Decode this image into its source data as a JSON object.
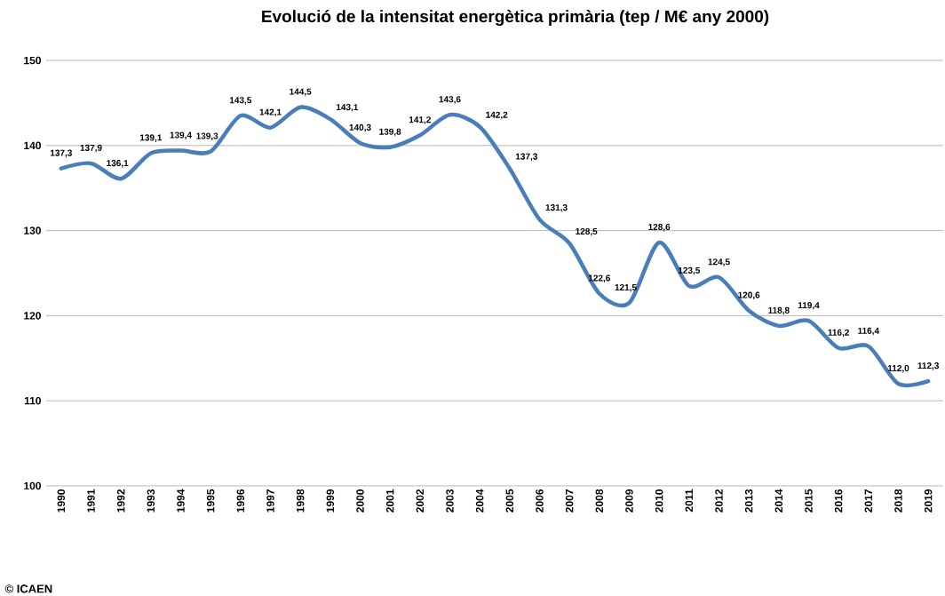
{
  "chart_data": {
    "type": "line",
    "title": "Evolució de la intensitat energètica primària (tep / M€ any 2000)",
    "categories": [
      "1990",
      "1991",
      "1992",
      "1993",
      "1994",
      "1995",
      "1996",
      "1997",
      "1998",
      "1999",
      "2000",
      "2001",
      "2002",
      "2003",
      "2004",
      "2005",
      "2006",
      "2007",
      "2008",
      "2009",
      "2010",
      "2011",
      "2012",
      "2013",
      "2014",
      "2015",
      "2016",
      "2017",
      "2018",
      "2019"
    ],
    "values": [
      137.3,
      137.9,
      136.1,
      139.1,
      139.4,
      139.3,
      143.5,
      142.1,
      144.5,
      143.1,
      140.3,
      139.8,
      141.2,
      143.6,
      142.2,
      137.3,
      131.3,
      128.5,
      122.6,
      121.5,
      128.6,
      123.5,
      124.5,
      120.6,
      118.8,
      119.4,
      116.2,
      116.4,
      112.0,
      112.3
    ],
    "value_labels": [
      "137,3",
      "137,9",
      "136,1",
      "139,1",
      "139,4",
      "139,3",
      "143,5",
      "142,1",
      "144,5",
      "143,1",
      "140,3",
      "139,8",
      "141,2",
      "143,6",
      "142,2",
      "137,3",
      "131,3",
      "128,5",
      "122,6",
      "121,5",
      "128,6",
      "123,5",
      "124,5",
      "120,6",
      "118,8",
      "119,4",
      "116,2",
      "116,4",
      "112,0",
      "112,3"
    ],
    "color": "#4a7ebb",
    "ylim": [
      100,
      150
    ],
    "yticks": [
      100,
      110,
      120,
      130,
      140,
      150
    ],
    "grid": "y",
    "annotations": [
      "© ICAEN"
    ]
  }
}
